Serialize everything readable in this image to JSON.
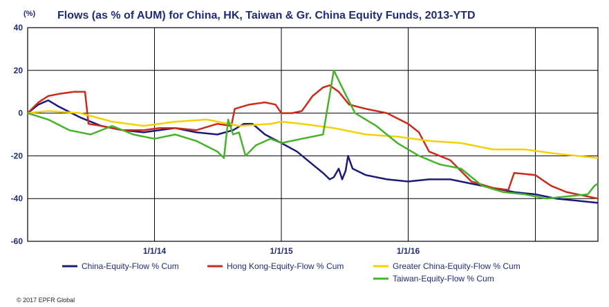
{
  "chart_data": {
    "type": "line",
    "title": "Flows (as % of AUM) for China, HK, Taiwan & Gr. China Equity Funds, 2013-YTD",
    "unit_label": "(%)",
    "ylim": [
      -60,
      40
    ],
    "yticks": [
      "40",
      "20",
      "0",
      "-20",
      "-40",
      "-60"
    ],
    "x_date_range": [
      "2013-01-01",
      "2017-06-30"
    ],
    "xticks": [
      {
        "label": "1/1/14",
        "date": "2014-01-01"
      },
      {
        "label": "1/1/15",
        "date": "2015-01-01"
      },
      {
        "label": "1/1/16",
        "date": "2016-01-01"
      }
    ],
    "extra_gridlines": [
      "2017-01-01"
    ],
    "grid": true,
    "legend_position": "bottom",
    "series": [
      {
        "name": "China-Equity-Flow % Cum",
        "color": "#1a1a7a",
        "points": [
          [
            "2013-01-01",
            0
          ],
          [
            "2013-02-01",
            4
          ],
          [
            "2013-03-01",
            6
          ],
          [
            "2013-04-01",
            3
          ],
          [
            "2013-06-01",
            -2
          ],
          [
            "2013-08-01",
            -6
          ],
          [
            "2013-10-01",
            -8
          ],
          [
            "2013-12-01",
            -9
          ],
          [
            "2014-01-15",
            -8
          ],
          [
            "2014-03-01",
            -7
          ],
          [
            "2014-05-01",
            -9
          ],
          [
            "2014-07-01",
            -10
          ],
          [
            "2014-08-15",
            -8
          ],
          [
            "2014-09-15",
            -5
          ],
          [
            "2014-10-10",
            -5
          ],
          [
            "2014-11-15",
            -10
          ],
          [
            "2015-01-01",
            -14
          ],
          [
            "2015-02-15",
            -18
          ],
          [
            "2015-04-01",
            -24
          ],
          [
            "2015-05-01",
            -28
          ],
          [
            "2015-05-20",
            -31
          ],
          [
            "2015-06-01",
            -30
          ],
          [
            "2015-06-15",
            -26
          ],
          [
            "2015-06-25",
            -31
          ],
          [
            "2015-07-05",
            -27
          ],
          [
            "2015-07-12",
            -20
          ],
          [
            "2015-07-25",
            -26
          ],
          [
            "2015-09-01",
            -29
          ],
          [
            "2015-11-01",
            -31
          ],
          [
            "2016-01-01",
            -32
          ],
          [
            "2016-03-01",
            -31
          ],
          [
            "2016-05-01",
            -31
          ],
          [
            "2016-07-01",
            -33
          ],
          [
            "2016-09-01",
            -35
          ],
          [
            "2016-11-01",
            -37
          ],
          [
            "2017-01-01",
            -38
          ],
          [
            "2017-03-01",
            -40
          ],
          [
            "2017-05-01",
            -41
          ],
          [
            "2017-06-30",
            -42
          ]
        ]
      },
      {
        "name": "Hong Kong-Equity-Flow % Cum",
        "color": "#cc2a1a",
        "points": [
          [
            "2013-01-01",
            0
          ],
          [
            "2013-02-01",
            5
          ],
          [
            "2013-03-01",
            8
          ],
          [
            "2013-04-01",
            9
          ],
          [
            "2013-05-15",
            10
          ],
          [
            "2013-06-15",
            10
          ],
          [
            "2013-06-25",
            -5
          ],
          [
            "2013-08-01",
            -6
          ],
          [
            "2013-10-01",
            -8
          ],
          [
            "2013-12-01",
            -8
          ],
          [
            "2014-01-15",
            -7
          ],
          [
            "2014-03-01",
            -7
          ],
          [
            "2014-05-01",
            -8
          ],
          [
            "2014-07-01",
            -5
          ],
          [
            "2014-08-10",
            -6
          ],
          [
            "2014-08-20",
            2
          ],
          [
            "2014-10-01",
            4
          ],
          [
            "2014-11-15",
            5
          ],
          [
            "2014-12-15",
            4
          ],
          [
            "2015-01-01",
            0
          ],
          [
            "2015-02-01",
            0
          ],
          [
            "2015-03-01",
            1
          ],
          [
            "2015-04-01",
            8
          ],
          [
            "2015-05-01",
            12
          ],
          [
            "2015-05-20",
            13
          ],
          [
            "2015-06-15",
            10
          ],
          [
            "2015-07-15",
            4
          ],
          [
            "2015-09-01",
            2
          ],
          [
            "2015-11-01",
            0
          ],
          [
            "2016-01-01",
            -5
          ],
          [
            "2016-02-01",
            -9
          ],
          [
            "2016-03-01",
            -18
          ],
          [
            "2016-05-01",
            -22
          ],
          [
            "2016-07-01",
            -32
          ],
          [
            "2016-09-01",
            -35
          ],
          [
            "2016-10-15",
            -36
          ],
          [
            "2016-11-01",
            -28
          ],
          [
            "2017-01-01",
            -29
          ],
          [
            "2017-02-15",
            -34
          ],
          [
            "2017-04-01",
            -37
          ],
          [
            "2017-06-30",
            -40
          ]
        ]
      },
      {
        "name": "Greater China-Equity-Flow % Cum",
        "color": "#f5d000",
        "points": [
          [
            "2013-01-01",
            0
          ],
          [
            "2013-03-01",
            1
          ],
          [
            "2013-06-01",
            0
          ],
          [
            "2013-09-01",
            -4
          ],
          [
            "2013-12-01",
            -6
          ],
          [
            "2014-03-01",
            -4
          ],
          [
            "2014-06-01",
            -3
          ],
          [
            "2014-09-01",
            -6
          ],
          [
            "2014-12-01",
            -5
          ],
          [
            "2015-01-01",
            -4
          ],
          [
            "2015-03-01",
            -5
          ],
          [
            "2015-06-01",
            -7
          ],
          [
            "2015-09-01",
            -10
          ],
          [
            "2015-12-01",
            -11
          ],
          [
            "2016-03-01",
            -13
          ],
          [
            "2016-06-01",
            -14
          ],
          [
            "2016-09-01",
            -17
          ],
          [
            "2016-12-01",
            -17
          ],
          [
            "2017-03-01",
            -19
          ],
          [
            "2017-06-30",
            -21
          ]
        ]
      },
      {
        "name": "Taiwan-Equity-Flow % Cum",
        "color": "#44b32a",
        "points": [
          [
            "2013-01-01",
            0
          ],
          [
            "2013-03-01",
            -3
          ],
          [
            "2013-05-01",
            -8
          ],
          [
            "2013-07-01",
            -10
          ],
          [
            "2013-09-01",
            -6
          ],
          [
            "2013-11-01",
            -10
          ],
          [
            "2014-01-01",
            -12
          ],
          [
            "2014-03-01",
            -10
          ],
          [
            "2014-05-01",
            -13
          ],
          [
            "2014-07-01",
            -18
          ],
          [
            "2014-07-20",
            -21
          ],
          [
            "2014-08-01",
            -3
          ],
          [
            "2014-08-15",
            -10
          ],
          [
            "2014-09-01",
            -9
          ],
          [
            "2014-09-20",
            -20
          ],
          [
            "2014-10-20",
            -15
          ],
          [
            "2014-12-01",
            -12
          ],
          [
            "2015-01-01",
            -14
          ],
          [
            "2015-03-01",
            -12
          ],
          [
            "2015-05-01",
            -10
          ],
          [
            "2015-06-01",
            20
          ],
          [
            "2015-07-01",
            10
          ],
          [
            "2015-08-01",
            0
          ],
          [
            "2015-10-01",
            -6
          ],
          [
            "2015-12-01",
            -14
          ],
          [
            "2016-02-01",
            -20
          ],
          [
            "2016-04-01",
            -24
          ],
          [
            "2016-06-01",
            -26
          ],
          [
            "2016-08-01",
            -34
          ],
          [
            "2016-10-01",
            -37
          ],
          [
            "2016-12-01",
            -38
          ],
          [
            "2017-02-01",
            -40
          ],
          [
            "2017-04-01",
            -39
          ],
          [
            "2017-06-01",
            -38
          ],
          [
            "2017-06-20",
            -34
          ],
          [
            "2017-06-30",
            -33
          ]
        ]
      }
    ],
    "copyright": "© 2017 EPFR Global"
  }
}
